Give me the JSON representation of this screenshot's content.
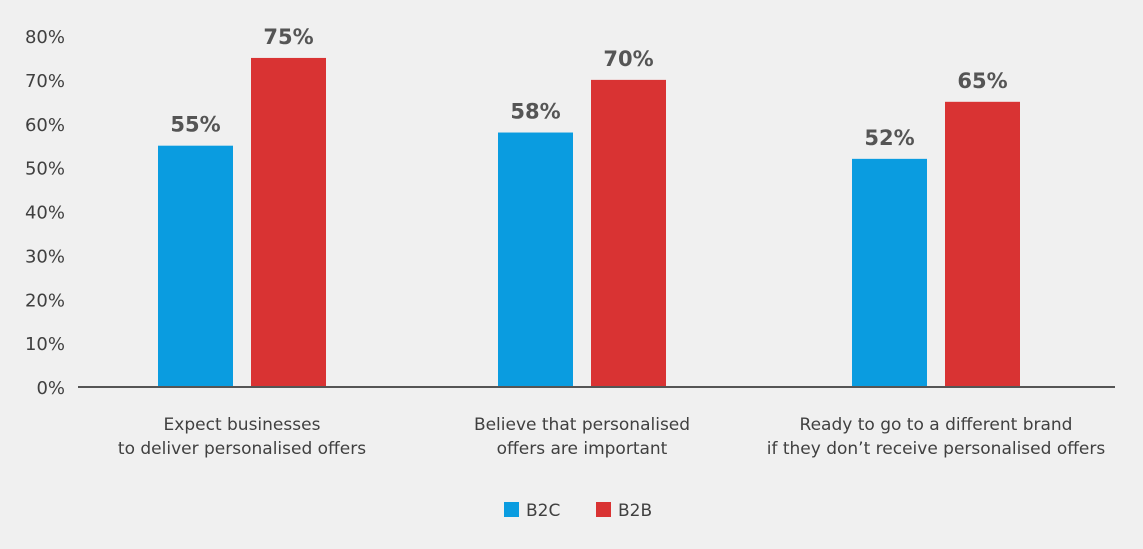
{
  "chart_data": {
    "type": "bar",
    "title": "",
    "xlabel": "",
    "ylabel": "",
    "ylim": [
      0,
      80
    ],
    "yticks": [
      "0%",
      "10%",
      "20%",
      "30%",
      "40%",
      "50%",
      "60%",
      "70%",
      "80%"
    ],
    "grid": false,
    "legend": "bottom-center",
    "categories": [
      [
        "Expect businesses",
        "to deliver personalised offers"
      ],
      [
        "Believe that personalised",
        "offers are important"
      ],
      [
        "Ready to go to a different brand",
        "if they don’t receive personalised offers"
      ]
    ],
    "series": [
      {
        "name": "B2C",
        "color": "#0a9ce0",
        "values": [
          55,
          58,
          52
        ],
        "labels": [
          "55%",
          "58%",
          "52%"
        ]
      },
      {
        "name": "B2B",
        "color": "#d93333",
        "values": [
          75,
          70,
          65
        ],
        "labels": [
          "75%",
          "70%",
          "65%"
        ]
      }
    ]
  }
}
